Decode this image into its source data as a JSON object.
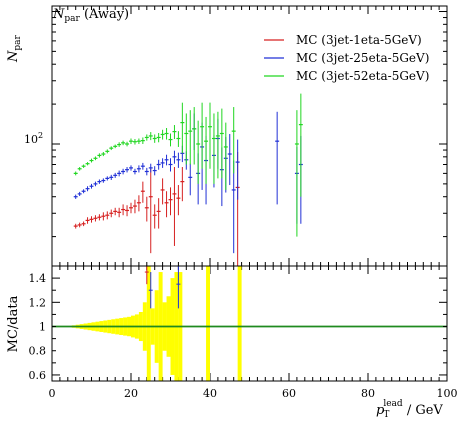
{
  "chart_data": [
    {
      "type": "scatter",
      "title": "N_par (Away)",
      "title_main": "N",
      "title_sub": "par",
      "title_suffix": " (Away)",
      "ylabel_main": "N",
      "ylabel_sub": "par",
      "yscale": "log",
      "xlim": [
        0,
        100
      ],
      "ylim": [
        12,
        1100
      ],
      "ytick_label": "10",
      "ytick_exp": "2",
      "legend_position": "top-right",
      "series": [
        {
          "name": "MC (3jet-1eta-5GeV)",
          "color": "#d62020",
          "points": [
            [
              6,
              24,
              1
            ],
            [
              7,
              24.5,
              1
            ],
            [
              8,
              25,
              1
            ],
            [
              9,
              26.5,
              1.5
            ],
            [
              10,
              27,
              1.5
            ],
            [
              11,
              27.5,
              1.5
            ],
            [
              12,
              28,
              1.5
            ],
            [
              13,
              28.5,
              2
            ],
            [
              14,
              29,
              2
            ],
            [
              15,
              30,
              2
            ],
            [
              16,
              31,
              2
            ],
            [
              17,
              30.5,
              2.5
            ],
            [
              18,
              32,
              3
            ],
            [
              19,
              31.5,
              3
            ],
            [
              20,
              33,
              3
            ],
            [
              21,
              34,
              4
            ],
            [
              22,
              36,
              5
            ],
            [
              23,
              44,
              8
            ],
            [
              24,
              33,
              7
            ],
            [
              25,
              40,
              25
            ],
            [
              26,
              29,
              6
            ],
            [
              27,
              31,
              8
            ],
            [
              28,
              45,
              10
            ],
            [
              29,
              36,
              8
            ],
            [
              30,
              38,
              9
            ],
            [
              31,
              42,
              25
            ],
            [
              32,
              39,
              10
            ],
            [
              33,
              52,
              15
            ],
            [
              47,
              47,
              40
            ]
          ]
        },
        {
          "name": "MC (3jet-25eta-5GeV)",
          "color": "#2030d6",
          "points": [
            [
              6,
              40,
              1.5
            ],
            [
              7,
              42,
              1.5
            ],
            [
              8,
              44,
              1.5
            ],
            [
              9,
              46,
              2
            ],
            [
              10,
              48,
              2
            ],
            [
              11,
              50,
              2
            ],
            [
              12,
              52,
              2
            ],
            [
              13,
              53,
              2
            ],
            [
              14,
              55,
              2
            ],
            [
              15,
              56,
              2.5
            ],
            [
              16,
              58,
              2.5
            ],
            [
              17,
              60,
              3
            ],
            [
              18,
              62,
              3
            ],
            [
              19,
              64,
              3
            ],
            [
              20,
              66,
              3
            ],
            [
              21,
              62,
              3
            ],
            [
              22,
              65,
              4
            ],
            [
              23,
              68,
              4
            ],
            [
              24,
              62,
              4
            ],
            [
              25,
              66,
              5
            ],
            [
              26,
              63,
              5
            ],
            [
              27,
              70,
              6
            ],
            [
              28,
              72,
              6
            ],
            [
              29,
              76,
              7
            ],
            [
              30,
              70,
              8
            ],
            [
              31,
              80,
              9
            ],
            [
              32,
              76,
              10
            ],
            [
              33,
              85,
              12
            ],
            [
              34,
              76,
              12
            ],
            [
              35,
              56,
              15
            ],
            [
              36,
              130,
              40
            ],
            [
              37,
              60,
              25
            ],
            [
              38,
              95,
              50
            ],
            [
              39,
              75,
              40
            ],
            [
              41,
              82,
              35
            ],
            [
              42,
              110,
              45
            ],
            [
              43,
              64,
              30
            ],
            [
              44,
              78,
              35
            ],
            [
              45,
              84,
              35
            ],
            [
              46,
              45,
              30
            ],
            [
              47,
              73,
              35
            ],
            [
              57,
              105,
              70
            ],
            [
              62,
              60,
              35
            ],
            [
              63,
              70,
              45
            ]
          ]
        },
        {
          "name": "MC (3jet-52eta-5GeV)",
          "color": "#20d620",
          "points": [
            [
              6,
              60,
              2
            ],
            [
              7,
              65,
              2
            ],
            [
              8,
              68,
              2
            ],
            [
              9,
              71,
              2
            ],
            [
              10,
              75,
              2.5
            ],
            [
              11,
              78,
              2.5
            ],
            [
              12,
              82,
              3
            ],
            [
              13,
              84,
              3
            ],
            [
              14,
              88,
              3
            ],
            [
              15,
              93,
              3
            ],
            [
              16,
              96,
              3
            ],
            [
              17,
              99,
              4
            ],
            [
              18,
              102,
              4
            ],
            [
              19,
              100,
              4
            ],
            [
              20,
              105,
              5
            ],
            [
              21,
              104,
              5
            ],
            [
              22,
              105,
              5
            ],
            [
              23,
              106,
              6
            ],
            [
              24,
              112,
              6
            ],
            [
              25,
              115,
              8
            ],
            [
              26,
              110,
              8
            ],
            [
              27,
              112,
              9
            ],
            [
              28,
              118,
              10
            ],
            [
              29,
              120,
              12
            ],
            [
              30,
              108,
              12
            ],
            [
              31,
              124,
              15
            ],
            [
              32,
              110,
              15
            ],
            [
              33,
              145,
              60
            ],
            [
              34,
              120,
              50
            ],
            [
              35,
              125,
              55
            ],
            [
              36,
              130,
              60
            ],
            [
              37,
              100,
              50
            ],
            [
              38,
              135,
              70
            ],
            [
              39,
              105,
              55
            ],
            [
              40,
              135,
              70
            ],
            [
              41,
              110,
              60
            ],
            [
              42,
              115,
              60
            ],
            [
              43,
              120,
              65
            ],
            [
              44,
              95,
              50
            ],
            [
              46,
              125,
              65
            ],
            [
              62,
              100,
              80
            ],
            [
              63,
              140,
              100
            ]
          ]
        }
      ]
    },
    {
      "type": "scatter",
      "ylabel": "MC/data",
      "xlabel_main": "p",
      "xlabel_sub": "T",
      "xlabel_sup": "lead",
      "xlabel_unit": " / GeV",
      "xlim": [
        0,
        100
      ],
      "ylim": [
        0.55,
        1.5
      ],
      "reference_line": 1.0,
      "reference_color": "#1f8a1f",
      "band_color": "#ffff00",
      "band": [
        [
          5,
          6,
          0.01
        ],
        [
          6,
          7,
          0.015
        ],
        [
          7,
          8,
          0.02
        ],
        [
          8,
          9,
          0.025
        ],
        [
          9,
          10,
          0.03
        ],
        [
          10,
          11,
          0.035
        ],
        [
          11,
          12,
          0.04
        ],
        [
          12,
          13,
          0.045
        ],
        [
          13,
          14,
          0.05
        ],
        [
          14,
          15,
          0.055
        ],
        [
          15,
          16,
          0.06
        ],
        [
          16,
          17,
          0.065
        ],
        [
          17,
          18,
          0.07
        ],
        [
          18,
          19,
          0.075
        ],
        [
          19,
          20,
          0.08
        ],
        [
          20,
          21,
          0.09
        ],
        [
          21,
          22,
          0.1
        ],
        [
          22,
          23,
          0.12
        ],
        [
          23,
          24,
          0.2
        ],
        [
          24,
          25,
          0.5
        ],
        [
          25,
          26,
          0.15
        ],
        [
          26,
          27,
          0.3
        ],
        [
          27,
          28,
          0.45
        ],
        [
          28,
          29,
          0.2
        ],
        [
          29,
          30,
          0.25
        ],
        [
          30,
          31,
          0.4
        ],
        [
          31,
          32,
          0.45
        ],
        [
          32,
          33,
          0.45
        ],
        [
          39,
          40,
          0.5
        ],
        [
          47,
          48,
          0.5
        ]
      ],
      "ratio_points": [
        [
          25,
          1.3,
          0.15,
          "#2030d6"
        ],
        [
          32,
          1.35,
          0.2,
          "#2030d6"
        ],
        [
          24,
          1.45,
          0.1,
          "#d62020"
        ]
      ],
      "xticks": [
        0,
        20,
        40,
        60,
        80,
        100
      ],
      "yticks": [
        0.6,
        0.8,
        1,
        1.2,
        1.4
      ],
      "ytick_labels": [
        "0.6",
        "0.8",
        "1",
        "1.2",
        "1.4"
      ]
    }
  ]
}
